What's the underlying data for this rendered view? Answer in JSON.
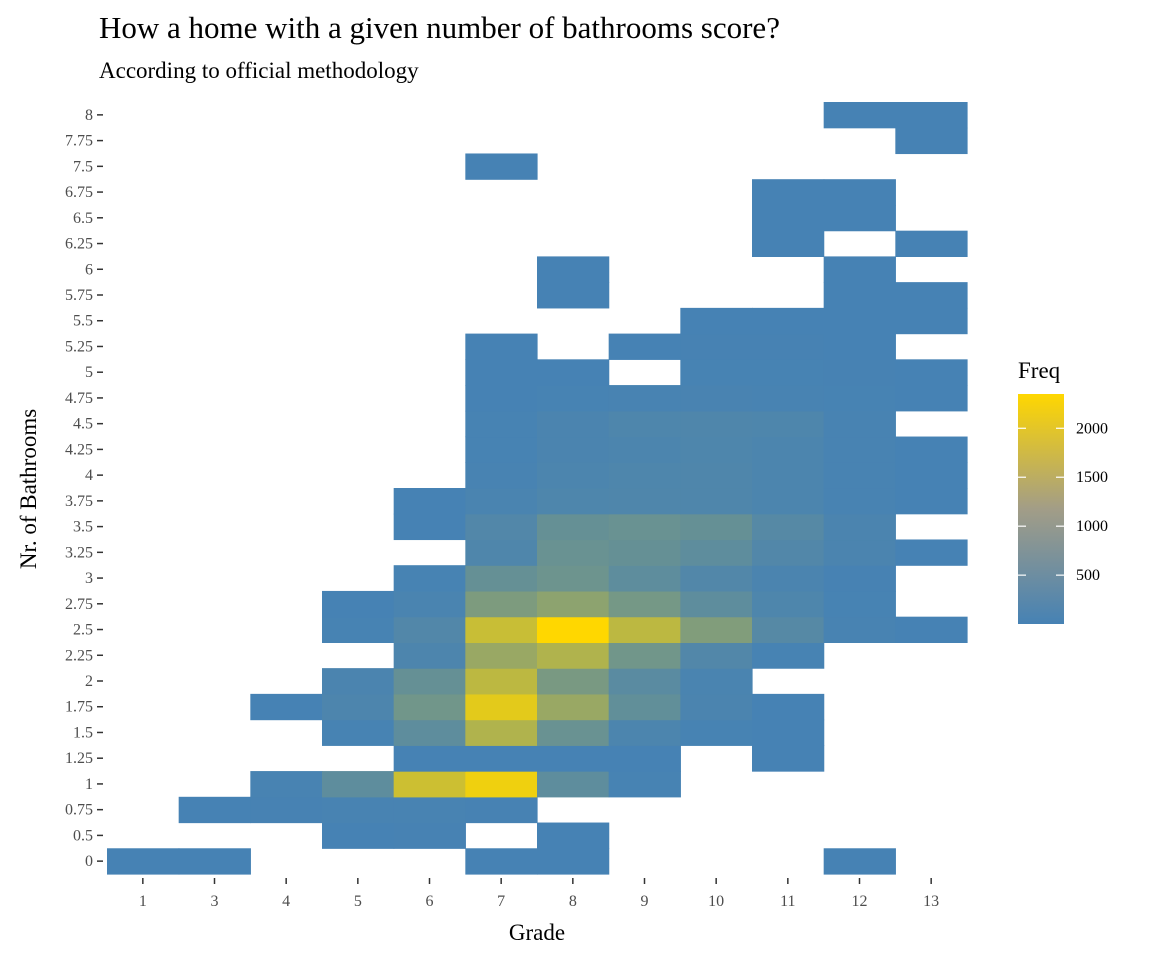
{
  "chart_data": {
    "type": "heatmap",
    "title": "How a home with a given number of bathrooms score?",
    "subtitle": "According to official methodology",
    "xlabel": "Grade",
    "ylabel": "Nr. of Bathrooms",
    "x_categories": [
      "1",
      "3",
      "4",
      "5",
      "6",
      "7",
      "8",
      "9",
      "10",
      "11",
      "12",
      "13"
    ],
    "y_categories": [
      "0",
      "0.5",
      "0.75",
      "1",
      "1.25",
      "1.5",
      "1.75",
      "2",
      "2.25",
      "2.5",
      "2.75",
      "3",
      "3.25",
      "3.5",
      "3.75",
      "4",
      "4.25",
      "4.5",
      "4.75",
      "5",
      "5.25",
      "5.5",
      "5.75",
      "6",
      "6.25",
      "6.5",
      "6.75",
      "7.5",
      "7.75",
      "8"
    ],
    "cells": [
      {
        "x": "1",
        "y": "0",
        "value": 1
      },
      {
        "x": "3",
        "y": "0",
        "value": 1
      },
      {
        "x": "7",
        "y": "0",
        "value": 1
      },
      {
        "x": "8",
        "y": "0",
        "value": 1
      },
      {
        "x": "12",
        "y": "0",
        "value": 1
      },
      {
        "x": "5",
        "y": "0.5",
        "value": 5
      },
      {
        "x": "6",
        "y": "0.5",
        "value": 10
      },
      {
        "x": "8",
        "y": "0.5",
        "value": 1
      },
      {
        "x": "3",
        "y": "0.75",
        "value": 3
      },
      {
        "x": "4",
        "y": "0.75",
        "value": 10
      },
      {
        "x": "5",
        "y": "0.75",
        "value": 25
      },
      {
        "x": "6",
        "y": "0.75",
        "value": 30
      },
      {
        "x": "7",
        "y": "0.75",
        "value": 10
      },
      {
        "x": "4",
        "y": "1",
        "value": 30
      },
      {
        "x": "5",
        "y": "1",
        "value": 300
      },
      {
        "x": "6",
        "y": "1",
        "value": 1700
      },
      {
        "x": "7",
        "y": "1",
        "value": 2150
      },
      {
        "x": "8",
        "y": "1",
        "value": 300
      },
      {
        "x": "9",
        "y": "1",
        "value": 20
      },
      {
        "x": "6",
        "y": "1.25",
        "value": 5
      },
      {
        "x": "7",
        "y": "1.25",
        "value": 5
      },
      {
        "x": "8",
        "y": "1.25",
        "value": 2
      },
      {
        "x": "9",
        "y": "1.25",
        "value": 2
      },
      {
        "x": "11",
        "y": "1.25",
        "value": 1
      },
      {
        "x": "5",
        "y": "1.5",
        "value": 20
      },
      {
        "x": "6",
        "y": "1.5",
        "value": 300
      },
      {
        "x": "7",
        "y": "1.5",
        "value": 1350
      },
      {
        "x": "8",
        "y": "1.5",
        "value": 450
      },
      {
        "x": "9",
        "y": "1.5",
        "value": 80
      },
      {
        "x": "10",
        "y": "1.5",
        "value": 20
      },
      {
        "x": "11",
        "y": "1.5",
        "value": 2
      },
      {
        "x": "4",
        "y": "1.75",
        "value": 5
      },
      {
        "x": "5",
        "y": "1.75",
        "value": 90
      },
      {
        "x": "6",
        "y": "1.75",
        "value": 550
      },
      {
        "x": "7",
        "y": "1.75",
        "value": 2000
      },
      {
        "x": "8",
        "y": "1.75",
        "value": 1050
      },
      {
        "x": "9",
        "y": "1.75",
        "value": 350
      },
      {
        "x": "10",
        "y": "1.75",
        "value": 60
      },
      {
        "x": "11",
        "y": "1.75",
        "value": 5
      },
      {
        "x": "5",
        "y": "2",
        "value": 60
      },
      {
        "x": "6",
        "y": "2",
        "value": 400
      },
      {
        "x": "7",
        "y": "2",
        "value": 1500
      },
      {
        "x": "8",
        "y": "2",
        "value": 650
      },
      {
        "x": "9",
        "y": "2",
        "value": 250
      },
      {
        "x": "10",
        "y": "2",
        "value": 50
      },
      {
        "x": "6",
        "y": "2.25",
        "value": 90
      },
      {
        "x": "7",
        "y": "2.25",
        "value": 1050
      },
      {
        "x": "8",
        "y": "2.25",
        "value": 1350
      },
      {
        "x": "9",
        "y": "2.25",
        "value": 550
      },
      {
        "x": "10",
        "y": "2.25",
        "value": 150
      },
      {
        "x": "11",
        "y": "2.25",
        "value": 20
      },
      {
        "x": "5",
        "y": "2.5",
        "value": 20
      },
      {
        "x": "6",
        "y": "2.5",
        "value": 150
      },
      {
        "x": "7",
        "y": "2.5",
        "value": 1650
      },
      {
        "x": "8",
        "y": "2.5",
        "value": 2350
      },
      {
        "x": "9",
        "y": "2.5",
        "value": 1500
      },
      {
        "x": "10",
        "y": "2.5",
        "value": 750
      },
      {
        "x": "11",
        "y": "2.5",
        "value": 200
      },
      {
        "x": "12",
        "y": "2.5",
        "value": 25
      },
      {
        "x": "13",
        "y": "2.5",
        "value": 3
      },
      {
        "x": "5",
        "y": "2.75",
        "value": 5
      },
      {
        "x": "6",
        "y": "2.75",
        "value": 50
      },
      {
        "x": "7",
        "y": "2.75",
        "value": 700
      },
      {
        "x": "8",
        "y": "2.75",
        "value": 900
      },
      {
        "x": "9",
        "y": "2.75",
        "value": 600
      },
      {
        "x": "10",
        "y": "2.75",
        "value": 300
      },
      {
        "x": "11",
        "y": "2.75",
        "value": 100
      },
      {
        "x": "12",
        "y": "2.75",
        "value": 15
      },
      {
        "x": "6",
        "y": "3",
        "value": 15
      },
      {
        "x": "7",
        "y": "3",
        "value": 400
      },
      {
        "x": "8",
        "y": "3",
        "value": 500
      },
      {
        "x": "9",
        "y": "3",
        "value": 300
      },
      {
        "x": "10",
        "y": "3",
        "value": 150
      },
      {
        "x": "11",
        "y": "3",
        "value": 60
      },
      {
        "x": "12",
        "y": "3",
        "value": 10
      },
      {
        "x": "7",
        "y": "3.25",
        "value": 120
      },
      {
        "x": "8",
        "y": "3.25",
        "value": 450
      },
      {
        "x": "9",
        "y": "3.25",
        "value": 400
      },
      {
        "x": "10",
        "y": "3.25",
        "value": 300
      },
      {
        "x": "11",
        "y": "3.25",
        "value": 150
      },
      {
        "x": "12",
        "y": "3.25",
        "value": 60
      },
      {
        "x": "13",
        "y": "3.25",
        "value": 5
      },
      {
        "x": "6",
        "y": "3.5",
        "value": 5
      },
      {
        "x": "7",
        "y": "3.5",
        "value": 150
      },
      {
        "x": "8",
        "y": "3.5",
        "value": 400
      },
      {
        "x": "9",
        "y": "3.5",
        "value": 450
      },
      {
        "x": "10",
        "y": "3.5",
        "value": 400
      },
      {
        "x": "11",
        "y": "3.5",
        "value": 200
      },
      {
        "x": "12",
        "y": "3.5",
        "value": 60
      },
      {
        "x": "6",
        "y": "3.75",
        "value": 3
      },
      {
        "x": "7",
        "y": "3.75",
        "value": 50
      },
      {
        "x": "8",
        "y": "3.75",
        "value": 100
      },
      {
        "x": "9",
        "y": "3.75",
        "value": 120
      },
      {
        "x": "10",
        "y": "3.75",
        "value": 120
      },
      {
        "x": "11",
        "y": "3.75",
        "value": 80
      },
      {
        "x": "12",
        "y": "3.75",
        "value": 30
      },
      {
        "x": "13",
        "y": "3.75",
        "value": 5
      },
      {
        "x": "7",
        "y": "4",
        "value": 30
      },
      {
        "x": "8",
        "y": "4",
        "value": 80
      },
      {
        "x": "9",
        "y": "4",
        "value": 100
      },
      {
        "x": "10",
        "y": "4",
        "value": 120
      },
      {
        "x": "11",
        "y": "4",
        "value": 80
      },
      {
        "x": "12",
        "y": "4",
        "value": 30
      },
      {
        "x": "13",
        "y": "4",
        "value": 5
      },
      {
        "x": "7",
        "y": "4.25",
        "value": 20
      },
      {
        "x": "8",
        "y": "4.25",
        "value": 60
      },
      {
        "x": "9",
        "y": "4.25",
        "value": 80
      },
      {
        "x": "10",
        "y": "4.25",
        "value": 100
      },
      {
        "x": "11",
        "y": "4.25",
        "value": 80
      },
      {
        "x": "12",
        "y": "4.25",
        "value": 30
      },
      {
        "x": "13",
        "y": "4.25",
        "value": 3
      },
      {
        "x": "7",
        "y": "4.5",
        "value": 15
      },
      {
        "x": "8",
        "y": "4.5",
        "value": 60
      },
      {
        "x": "9",
        "y": "4.5",
        "value": 100
      },
      {
        "x": "10",
        "y": "4.5",
        "value": 120
      },
      {
        "x": "11",
        "y": "4.5",
        "value": 100
      },
      {
        "x": "12",
        "y": "4.5",
        "value": 30
      },
      {
        "x": "7",
        "y": "4.75",
        "value": 3
      },
      {
        "x": "8",
        "y": "4.75",
        "value": 20
      },
      {
        "x": "9",
        "y": "4.75",
        "value": 30
      },
      {
        "x": "10",
        "y": "4.75",
        "value": 40
      },
      {
        "x": "11",
        "y": "4.75",
        "value": 30
      },
      {
        "x": "12",
        "y": "4.75",
        "value": 15
      },
      {
        "x": "13",
        "y": "4.75",
        "value": 3
      },
      {
        "x": "7",
        "y": "5",
        "value": 3
      },
      {
        "x": "8",
        "y": "5",
        "value": 5
      },
      {
        "x": "10",
        "y": "5",
        "value": 15
      },
      {
        "x": "11",
        "y": "5",
        "value": 15
      },
      {
        "x": "12",
        "y": "5",
        "value": 10
      },
      {
        "x": "13",
        "y": "5",
        "value": 3
      },
      {
        "x": "7",
        "y": "5.25",
        "value": 1
      },
      {
        "x": "9",
        "y": "5.25",
        "value": 3
      },
      {
        "x": "10",
        "y": "5.25",
        "value": 10
      },
      {
        "x": "11",
        "y": "5.25",
        "value": 10
      },
      {
        "x": "12",
        "y": "5.25",
        "value": 5
      },
      {
        "x": "10",
        "y": "5.5",
        "value": 3
      },
      {
        "x": "11",
        "y": "5.5",
        "value": 5
      },
      {
        "x": "12",
        "y": "5.5",
        "value": 5
      },
      {
        "x": "13",
        "y": "5.5",
        "value": 2
      },
      {
        "x": "8",
        "y": "5.75",
        "value": 1
      },
      {
        "x": "12",
        "y": "5.75",
        "value": 2
      },
      {
        "x": "13",
        "y": "5.75",
        "value": 2
      },
      {
        "x": "8",
        "y": "6",
        "value": 1
      },
      {
        "x": "12",
        "y": "6",
        "value": 3
      },
      {
        "x": "11",
        "y": "6.25",
        "value": 1
      },
      {
        "x": "13",
        "y": "6.25",
        "value": 1
      },
      {
        "x": "11",
        "y": "6.5",
        "value": 1
      },
      {
        "x": "12",
        "y": "6.5",
        "value": 1
      },
      {
        "x": "11",
        "y": "6.75",
        "value": 1
      },
      {
        "x": "12",
        "y": "6.75",
        "value": 1
      },
      {
        "x": "7",
        "y": "7.5",
        "value": 1
      },
      {
        "x": "13",
        "y": "7.75",
        "value": 1
      },
      {
        "x": "12",
        "y": "8",
        "value": 1
      },
      {
        "x": "13",
        "y": "8",
        "value": 1
      }
    ],
    "color_scale": {
      "low": "#4682b4",
      "high": "#ffd700",
      "min": 1,
      "max": 2350
    },
    "legend": {
      "title": "Freq",
      "ticks": [
        500,
        1000,
        1500,
        2000
      ],
      "position": "right"
    },
    "grid": false
  }
}
